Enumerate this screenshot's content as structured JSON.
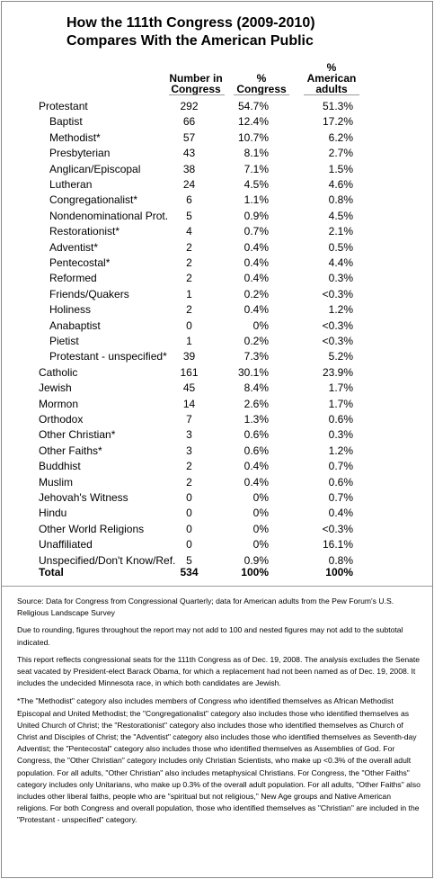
{
  "title": {
    "line1": "How the 111th Congress (2009-2010)",
    "line2": "Compares With the American Public"
  },
  "headers": {
    "number": [
      "Number in",
      "Congress"
    ],
    "pct_congress": [
      "%",
      "Congress"
    ],
    "pct_adults": [
      "%",
      "American",
      "adults"
    ]
  },
  "rows": [
    {
      "label": "Protestant",
      "n": "292",
      "pc": "54.7%",
      "pa": "51.3%",
      "sub": false
    },
    {
      "label": "Baptist",
      "n": "66",
      "pc": "12.4%",
      "pa": "17.2%",
      "sub": true
    },
    {
      "label": "Methodist*",
      "n": "57",
      "pc": "10.7%",
      "pa": "6.2%",
      "sub": true
    },
    {
      "label": "Presbyterian",
      "n": "43",
      "pc": "8.1%",
      "pa": "2.7%",
      "sub": true
    },
    {
      "label": "Anglican/Episcopal",
      "n": "38",
      "pc": "7.1%",
      "pa": "1.5%",
      "sub": true
    },
    {
      "label": "Lutheran",
      "n": "24",
      "pc": "4.5%",
      "pa": "4.6%",
      "sub": true
    },
    {
      "label": "Congregationalist*",
      "n": "6",
      "pc": "1.1%",
      "pa": "0.8%",
      "sub": true
    },
    {
      "label": "Nondenominational Prot.",
      "n": "5",
      "pc": "0.9%",
      "pa": "4.5%",
      "sub": true
    },
    {
      "label": "Restorationist*",
      "n": "4",
      "pc": "0.7%",
      "pa": "2.1%",
      "sub": true
    },
    {
      "label": "Adventist*",
      "n": "2",
      "pc": "0.4%",
      "pa": "0.5%",
      "sub": true
    },
    {
      "label": "Pentecostal*",
      "n": "2",
      "pc": "0.4%",
      "pa": "4.4%",
      "sub": true
    },
    {
      "label": "Reformed",
      "n": "2",
      "pc": "0.4%",
      "pa": "0.3%",
      "sub": true
    },
    {
      "label": "Friends/Quakers",
      "n": "1",
      "pc": "0.2%",
      "pa": "<0.3%",
      "sub": true
    },
    {
      "label": "Holiness",
      "n": "2",
      "pc": "0.4%",
      "pa": "1.2%",
      "sub": true
    },
    {
      "label": "Anabaptist",
      "n": "0",
      "pc": "0%",
      "pa": "<0.3%",
      "sub": true
    },
    {
      "label": "Pietist",
      "n": "1",
      "pc": "0.2%",
      "pa": "<0.3%",
      "sub": true
    },
    {
      "label": "Protestant - unspecified*",
      "n": "39",
      "pc": "7.3%",
      "pa": "5.2%",
      "sub": true
    },
    {
      "label": "Catholic",
      "n": "161",
      "pc": "30.1%",
      "pa": "23.9%",
      "sub": false
    },
    {
      "label": "Jewish",
      "n": "45",
      "pc": "8.4%",
      "pa": "1.7%",
      "sub": false
    },
    {
      "label": "Mormon",
      "n": "14",
      "pc": "2.6%",
      "pa": "1.7%",
      "sub": false
    },
    {
      "label": "Orthodox",
      "n": "7",
      "pc": "1.3%",
      "pa": "0.6%",
      "sub": false
    },
    {
      "label": "Other Christian*",
      "n": "3",
      "pc": "0.6%",
      "pa": "0.3%",
      "sub": false
    },
    {
      "label": "Other Faiths*",
      "n": "3",
      "pc": "0.6%",
      "pa": "1.2%",
      "sub": false
    },
    {
      "label": "Buddhist",
      "n": "2",
      "pc": "0.4%",
      "pa": "0.7%",
      "sub": false
    },
    {
      "label": "Muslim",
      "n": "2",
      "pc": "0.4%",
      "pa": "0.6%",
      "sub": false
    },
    {
      "label": "Jehovah's Witness",
      "n": "0",
      "pc": "0%",
      "pa": "0.7%",
      "sub": false
    },
    {
      "label": "Hindu",
      "n": "0",
      "pc": "0%",
      "pa": "0.4%",
      "sub": false
    },
    {
      "label": "Other World Religions",
      "n": "0",
      "pc": "0%",
      "pa": "<0.3%",
      "sub": false
    },
    {
      "label": "Unaffiliated",
      "n": "0",
      "pc": "0%",
      "pa": "16.1%",
      "sub": false
    },
    {
      "label": "Unspecified/Don't Know/Ref.",
      "n": "5",
      "pc": "0.9%",
      "pa": "0.8%",
      "sub": false
    }
  ],
  "total": {
    "label": "Total",
    "n": "534",
    "pc": "100%",
    "pa": "100%"
  },
  "notes": {
    "source": "Source: Data for Congress from Congressional Quarterly; data for American adults from the Pew Forum's U.S. Religious Landscape Survey",
    "rounding": "Due to rounding, figures throughout the report may not add to 100 and nested figures may not add to the subtotal indicated.",
    "seats": "This report reflects congressional seats for the 111th Congress as of Dec. 19, 2008. The analysis excludes the Senate seat vacated by President-elect Barack Obama, for which a replacement had not been named as of Dec. 19, 2008. It includes the undecided Minnesota race, in which both candidates are Jewish.",
    "footnote": "*The \"Methodist\" category also includes members of Congress who identified themselves as African Methodist Episcopal and United Methodist; the \"Congregationalist\" category also includes those who identified themselves as United Church of Christ; the \"Restorationist\" category also includes those who identified themselves as Church of Christ and Disciples of Christ; the \"Adventist\" category also includes those who identified themselves as Seventh-day Adventist; the \"Pentecostal\" category also includes those who identified themselves as Assemblies of God. For Congress, the \"Other Christian\" category includes only Christian Scientists, who make up <0.3% of the overall adult population. For all adults, \"Other Christian\" also includes metaphysical Christians. For Congress, the \"Other Faiths\" category includes only Unitarians, who make up 0.3% of the overall adult population. For all adults, \"Other Faiths\" also includes other liberal faiths, people who are \"spiritual but not religious,\" New Age groups and Native American religions. For both Congress and overall population, those who identified themselves as \"Christian\" are included in the \"Protestant - unspecified\" category."
  }
}
